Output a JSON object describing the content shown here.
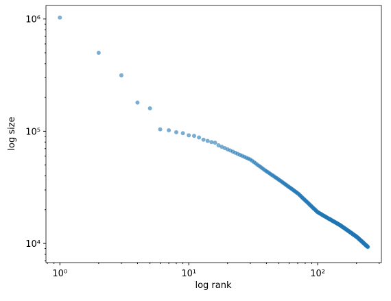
{
  "chart_data": {
    "type": "scatter",
    "xlabel": "log rank",
    "ylabel": "log size",
    "xscale": "log",
    "yscale": "log",
    "color": "#1f77b4",
    "alpha": 0.6,
    "xlim": [
      0.78,
      312
    ],
    "ylim": [
      6750,
      1320000
    ],
    "xticks": [
      {
        "value": 1,
        "label": "10⁰"
      },
      {
        "value": 10,
        "label": "10¹"
      },
      {
        "value": 100,
        "label": "10²"
      }
    ],
    "yticks": [
      {
        "value": 10000,
        "label": "10⁴"
      },
      {
        "value": 100000,
        "label": "10⁵"
      },
      {
        "value": 1000000,
        "label": "10⁶"
      }
    ],
    "xminorticks": [
      0.8,
      0.9,
      2,
      3,
      4,
      5,
      6,
      7,
      8,
      9,
      20,
      30,
      40,
      50,
      60,
      70,
      80,
      90,
      200,
      300
    ],
    "yminorticks": [
      7000,
      8000,
      9000,
      20000,
      30000,
      40000,
      50000,
      60000,
      70000,
      80000,
      90000,
      200000,
      300000,
      400000,
      500000,
      600000,
      700000,
      800000,
      900000
    ],
    "x": [
      1,
      2,
      3,
      4,
      5,
      6,
      7,
      8,
      9,
      10,
      11,
      12,
      13,
      14,
      15,
      16,
      17,
      18,
      19,
      20,
      21,
      22,
      23,
      24,
      25,
      26,
      27,
      28,
      29,
      30,
      31,
      32,
      33,
      34,
      35,
      36,
      37,
      38,
      39,
      40,
      41,
      42,
      43,
      44,
      45,
      46,
      47,
      48,
      49,
      50,
      51,
      52,
      53,
      54,
      55,
      56,
      57,
      58,
      59,
      60,
      61,
      62,
      63,
      64,
      65,
      66,
      67,
      68,
      69,
      70,
      71,
      72,
      73,
      74,
      75,
      76,
      77,
      78,
      79,
      80,
      81,
      82,
      83,
      84,
      85,
      86,
      87,
      88,
      89,
      90,
      91,
      92,
      93,
      94,
      95,
      96,
      97,
      98,
      99,
      100,
      101,
      102,
      103,
      104,
      105,
      106,
      107,
      108,
      109,
      110,
      111,
      112,
      113,
      114,
      115,
      116,
      117,
      118,
      119,
      120,
      121,
      122,
      123,
      124,
      125,
      126,
      127,
      128,
      129,
      130,
      131,
      132,
      133,
      134,
      135,
      136,
      137,
      138,
      139,
      140,
      141,
      142,
      143,
      144,
      145,
      146,
      147,
      148,
      149,
      150,
      151,
      152,
      153,
      154,
      155,
      156,
      157,
      158,
      159,
      160,
      161,
      162,
      163,
      164,
      165,
      166,
      167,
      168,
      169,
      170,
      171,
      172,
      173,
      174,
      175,
      176,
      177,
      178,
      179,
      180,
      181,
      182,
      183,
      184,
      185,
      186,
      187,
      188,
      189,
      190,
      191,
      192,
      193,
      194,
      195,
      196,
      197,
      198,
      199,
      200,
      201,
      202,
      203,
      204,
      205,
      206,
      207,
      208,
      209,
      210,
      211,
      212,
      213,
      214,
      215,
      216,
      217,
      218,
      219,
      220,
      221,
      222,
      223,
      224,
      225,
      226,
      227,
      228,
      229,
      230,
      231,
      232,
      233,
      234,
      235,
      236,
      237,
      238,
      239,
      240,
      241,
      242,
      243,
      244,
      245
    ],
    "values": [
      1030000,
      500000,
      315000,
      180000,
      160000,
      104000,
      102000,
      98000,
      96000,
      92000,
      91000,
      88000,
      84000,
      82000,
      80000,
      79000,
      75000,
      72800,
      70800,
      69000,
      67300,
      65700,
      64200,
      62800,
      61500,
      60300,
      59100,
      58000,
      57000,
      56000,
      54500,
      53100,
      51700,
      50400,
      49200,
      48100,
      47000,
      45900,
      44900,
      44000,
      43200,
      42400,
      41600,
      40900,
      40200,
      39500,
      38800,
      38200,
      37600,
      37000,
      36400,
      35800,
      35300,
      34700,
      34200,
      33700,
      33200,
      32700,
      32300,
      31800,
      31400,
      31000,
      30600,
      30200,
      29800,
      29400,
      29000,
      28700,
      28300,
      28000,
      27600,
      27200,
      26800,
      26400,
      26000,
      25600,
      25200,
      24900,
      24600,
      24200,
      23900,
      23600,
      23300,
      23000,
      22700,
      22400,
      22100,
      21800,
      21600,
      21300,
      21000,
      20800,
      20500,
      20300,
      20100,
      19900,
      19600,
      19400,
      19200,
      19000,
      18900,
      18800,
      18600,
      18500,
      18400,
      18300,
      18200,
      18000,
      17900,
      17800,
      17700,
      17600,
      17500,
      17400,
      17300,
      17200,
      17100,
      17000,
      16900,
      16800,
      16700,
      16600,
      16500,
      16500,
      16400,
      16300,
      16200,
      16100,
      16000,
      15900,
      15900,
      15800,
      15700,
      15600,
      15600,
      15500,
      15400,
      15300,
      15300,
      15200,
      15100,
      15000,
      15000,
      14900,
      14800,
      14800,
      14700,
      14600,
      14600,
      14500,
      14400,
      14300,
      14300,
      14200,
      14100,
      14000,
      14000,
      13900,
      13800,
      13800,
      13700,
      13600,
      13600,
      13500,
      13400,
      13400,
      13300,
      13200,
      13200,
      13100,
      13000,
      13000,
      12900,
      12900,
      12800,
      12800,
      12700,
      12600,
      12600,
      12500,
      12500,
      12400,
      12400,
      12300,
      12200,
      12200,
      12100,
      12100,
      12000,
      12000,
      11900,
      11900,
      11800,
      11800,
      11700,
      11700,
      11600,
      11600,
      11500,
      11500,
      11400,
      11400,
      11300,
      11300,
      11200,
      11200,
      11100,
      11000,
      11000,
      10900,
      10900,
      10800,
      10800,
      10700,
      10700,
      10600,
      10600,
      10500,
      10500,
      10400,
      10400,
      10300,
      10300,
      10200,
      10200,
      10100,
      10100,
      10000,
      10000,
      9940,
      9890,
      9850,
      9800,
      9760,
      9720,
      9670,
      9630,
      9590,
      9540,
      9500,
      9460,
      9420,
      9380,
      9340,
      9300
    ]
  }
}
